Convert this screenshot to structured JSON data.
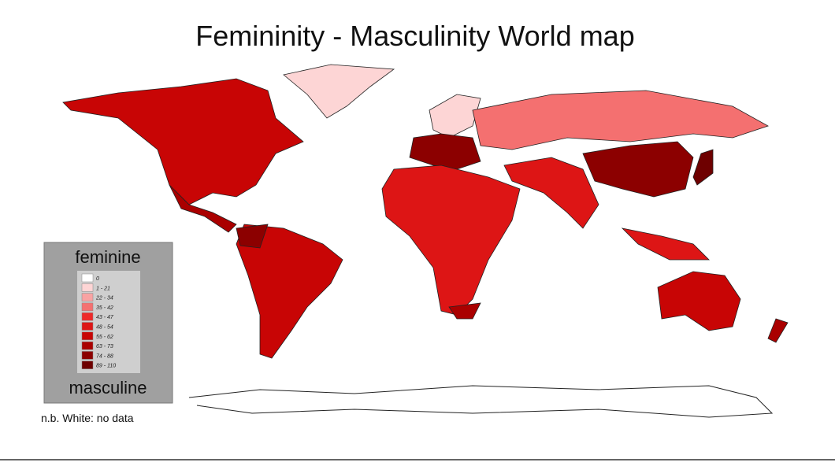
{
  "title": "Femininity - Masculinity World map",
  "legend": {
    "top": "feminine",
    "bottom": "masculine",
    "items": [
      {
        "label": "0",
        "color": "#ffffff"
      },
      {
        "label": "1 - 21",
        "color": "#fdd5d5"
      },
      {
        "label": "22 - 34",
        "color": "#f9a3a3"
      },
      {
        "label": "35 - 42",
        "color": "#f47070"
      },
      {
        "label": "43 - 47",
        "color": "#ee2a2a"
      },
      {
        "label": "48 - 54",
        "color": "#dd1515"
      },
      {
        "label": "55 - 62",
        "color": "#c80505"
      },
      {
        "label": "63 - 73",
        "color": "#aa0000"
      },
      {
        "label": "74 - 88",
        "color": "#8c0000"
      },
      {
        "label": "89 - 110",
        "color": "#6e0000"
      }
    ]
  },
  "note": "n.b. White: no data"
}
